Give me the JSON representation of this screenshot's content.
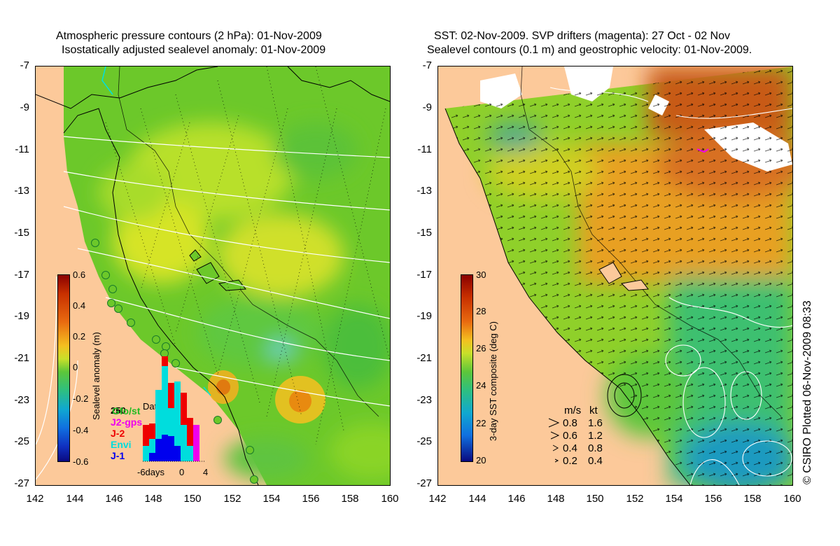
{
  "left_panel": {
    "title_line1": "Atmospheric pressure contours (2 hPa): 01-Nov-2009",
    "title_line2": "Isostatically adjusted sealevel anomaly: 01-Nov-2009",
    "colorbar": {
      "label": "Sealevel anomaly (m)",
      "ticks": [
        "0.6",
        "0.4",
        "0.2",
        "0",
        "-0.2",
        "-0.4",
        "-0.6"
      ]
    },
    "data_count": {
      "title": "Data count",
      "ymax": "250",
      "x_ticks": [
        "-6days",
        "0",
        "4"
      ],
      "legend": [
        {
          "name": "Gfo/st",
          "color": "#22bb22"
        },
        {
          "name": "J2-gps",
          "color": "#ee00ee"
        },
        {
          "name": "J-2",
          "color": "#ee0000"
        },
        {
          "name": "Envi",
          "color": "#00dddd"
        },
        {
          "name": "J-1",
          "color": "#0000ee"
        }
      ]
    }
  },
  "right_panel": {
    "title_line1": "SST: 02-Nov-2009. SVP drifters (magenta): 27 Oct - 02 Nov",
    "title_line2": "Sealevel contours (0.1 m) and geostrophic velocity: 01-Nov-2009.",
    "colorbar": {
      "label": "3-day SST composite (deg C)",
      "ticks": [
        "30",
        "28",
        "26",
        "24",
        "22",
        "20"
      ]
    },
    "arrow_legend": {
      "header_ms": "m/s",
      "header_kt": "kt",
      "rows": [
        {
          "ms": "0.8",
          "kt": "1.6"
        },
        {
          "ms": "0.6",
          "kt": "1.2"
        },
        {
          "ms": "0.4",
          "kt": "0.8"
        },
        {
          "ms": "0.2",
          "kt": "0.4"
        }
      ]
    }
  },
  "axes": {
    "latitudes": [
      "-7",
      "-9",
      "-11",
      "-13",
      "-15",
      "-17",
      "-19",
      "-21",
      "-23",
      "-25",
      "-27"
    ],
    "longitudes": [
      "142",
      "144",
      "146",
      "148",
      "150",
      "152",
      "154",
      "156",
      "158",
      "160"
    ]
  },
  "credit": "© CSIRO Plotted 06-Nov-2009 08:33",
  "colors": {
    "land": "#fcc99a",
    "sla_base": "#7ccf2a",
    "sst_warm": "#d86a1c",
    "sst_mid": "#8fd02a",
    "sst_cool": "#2fbf7a"
  }
}
